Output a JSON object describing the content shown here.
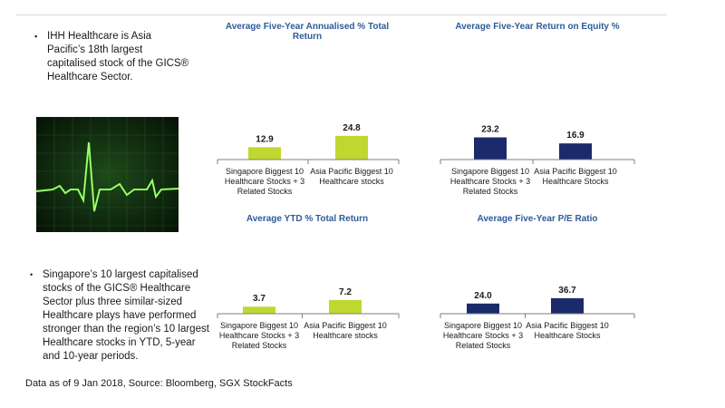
{
  "bullets": [
    {
      "marker": "▪",
      "text": "IHH Healthcare is Asia Pacific’s 18th largest capitalised stock of the GICS® Healthcare Sector."
    },
    {
      "marker": "•",
      "text": "Singapore’s 10 largest capitalised stocks of the GICS® Healthcare Sector plus three similar-sized Healthcare plays have performed stronger than the region’s 10 largest Healthcare stocks in YTD, 5-year and 10-year periods."
    }
  ],
  "source": "Data as of 9 Jan 2018, Source: Bloomberg, SGX StockFacts",
  "image": {
    "icon": "heartbeat-ecg-icon",
    "background": "#0f2a0f",
    "line_color": "#7cff4a"
  },
  "colors": {
    "green": "#bfd730",
    "navy": "#1b2a6b",
    "title": "#2e5b9a"
  },
  "chart_data": [
    {
      "type": "bar",
      "title": "Average Five-Year Annualised % Total Return",
      "categories": [
        [
          "Singapore Biggest 10",
          "Healthcare Stocks + 3",
          "Related Stocks"
        ],
        [
          "Asia Pacific Biggest 10",
          "Healthcare stocks"
        ]
      ],
      "values": [
        12.9,
        24.8
      ],
      "value_labels": [
        "12.9",
        "24.8"
      ],
      "color": "#bfd730"
    },
    {
      "type": "bar",
      "title": "Average Five-Year Return on Equity %",
      "categories": [
        [
          "Singapore Biggest 10",
          "Healthcare Stocks + 3",
          "Related Stocks"
        ],
        [
          "Asia Pacific Biggest 10",
          "Healthcare Stocks"
        ]
      ],
      "values": [
        23.2,
        16.9
      ],
      "value_labels": [
        "23.2",
        "16.9"
      ],
      "color": "#1b2a6b"
    },
    {
      "type": "bar",
      "title": "Average YTD % Total Return",
      "categories": [
        [
          "Singapore Biggest 10",
          "Healthcare Stocks + 3",
          "Related Stocks"
        ],
        [
          "Asia Pacific Biggest 10",
          "Healthcare stocks"
        ]
      ],
      "values": [
        3.7,
        7.2
      ],
      "value_labels": [
        "3.7",
        "7.2"
      ],
      "color": "#bfd730"
    },
    {
      "type": "bar",
      "title": "Average Five-Year P/E Ratio",
      "categories": [
        [
          "Singapore Biggest 10",
          "Healthcare Stocks + 3",
          "Related Stocks"
        ],
        [
          "Asia Pacific Biggest 10",
          "Healthcare Stocks"
        ]
      ],
      "values": [
        24.0,
        36.7
      ],
      "value_labels": [
        "24.0",
        "36.7"
      ],
      "color": "#1b2a6b"
    }
  ]
}
